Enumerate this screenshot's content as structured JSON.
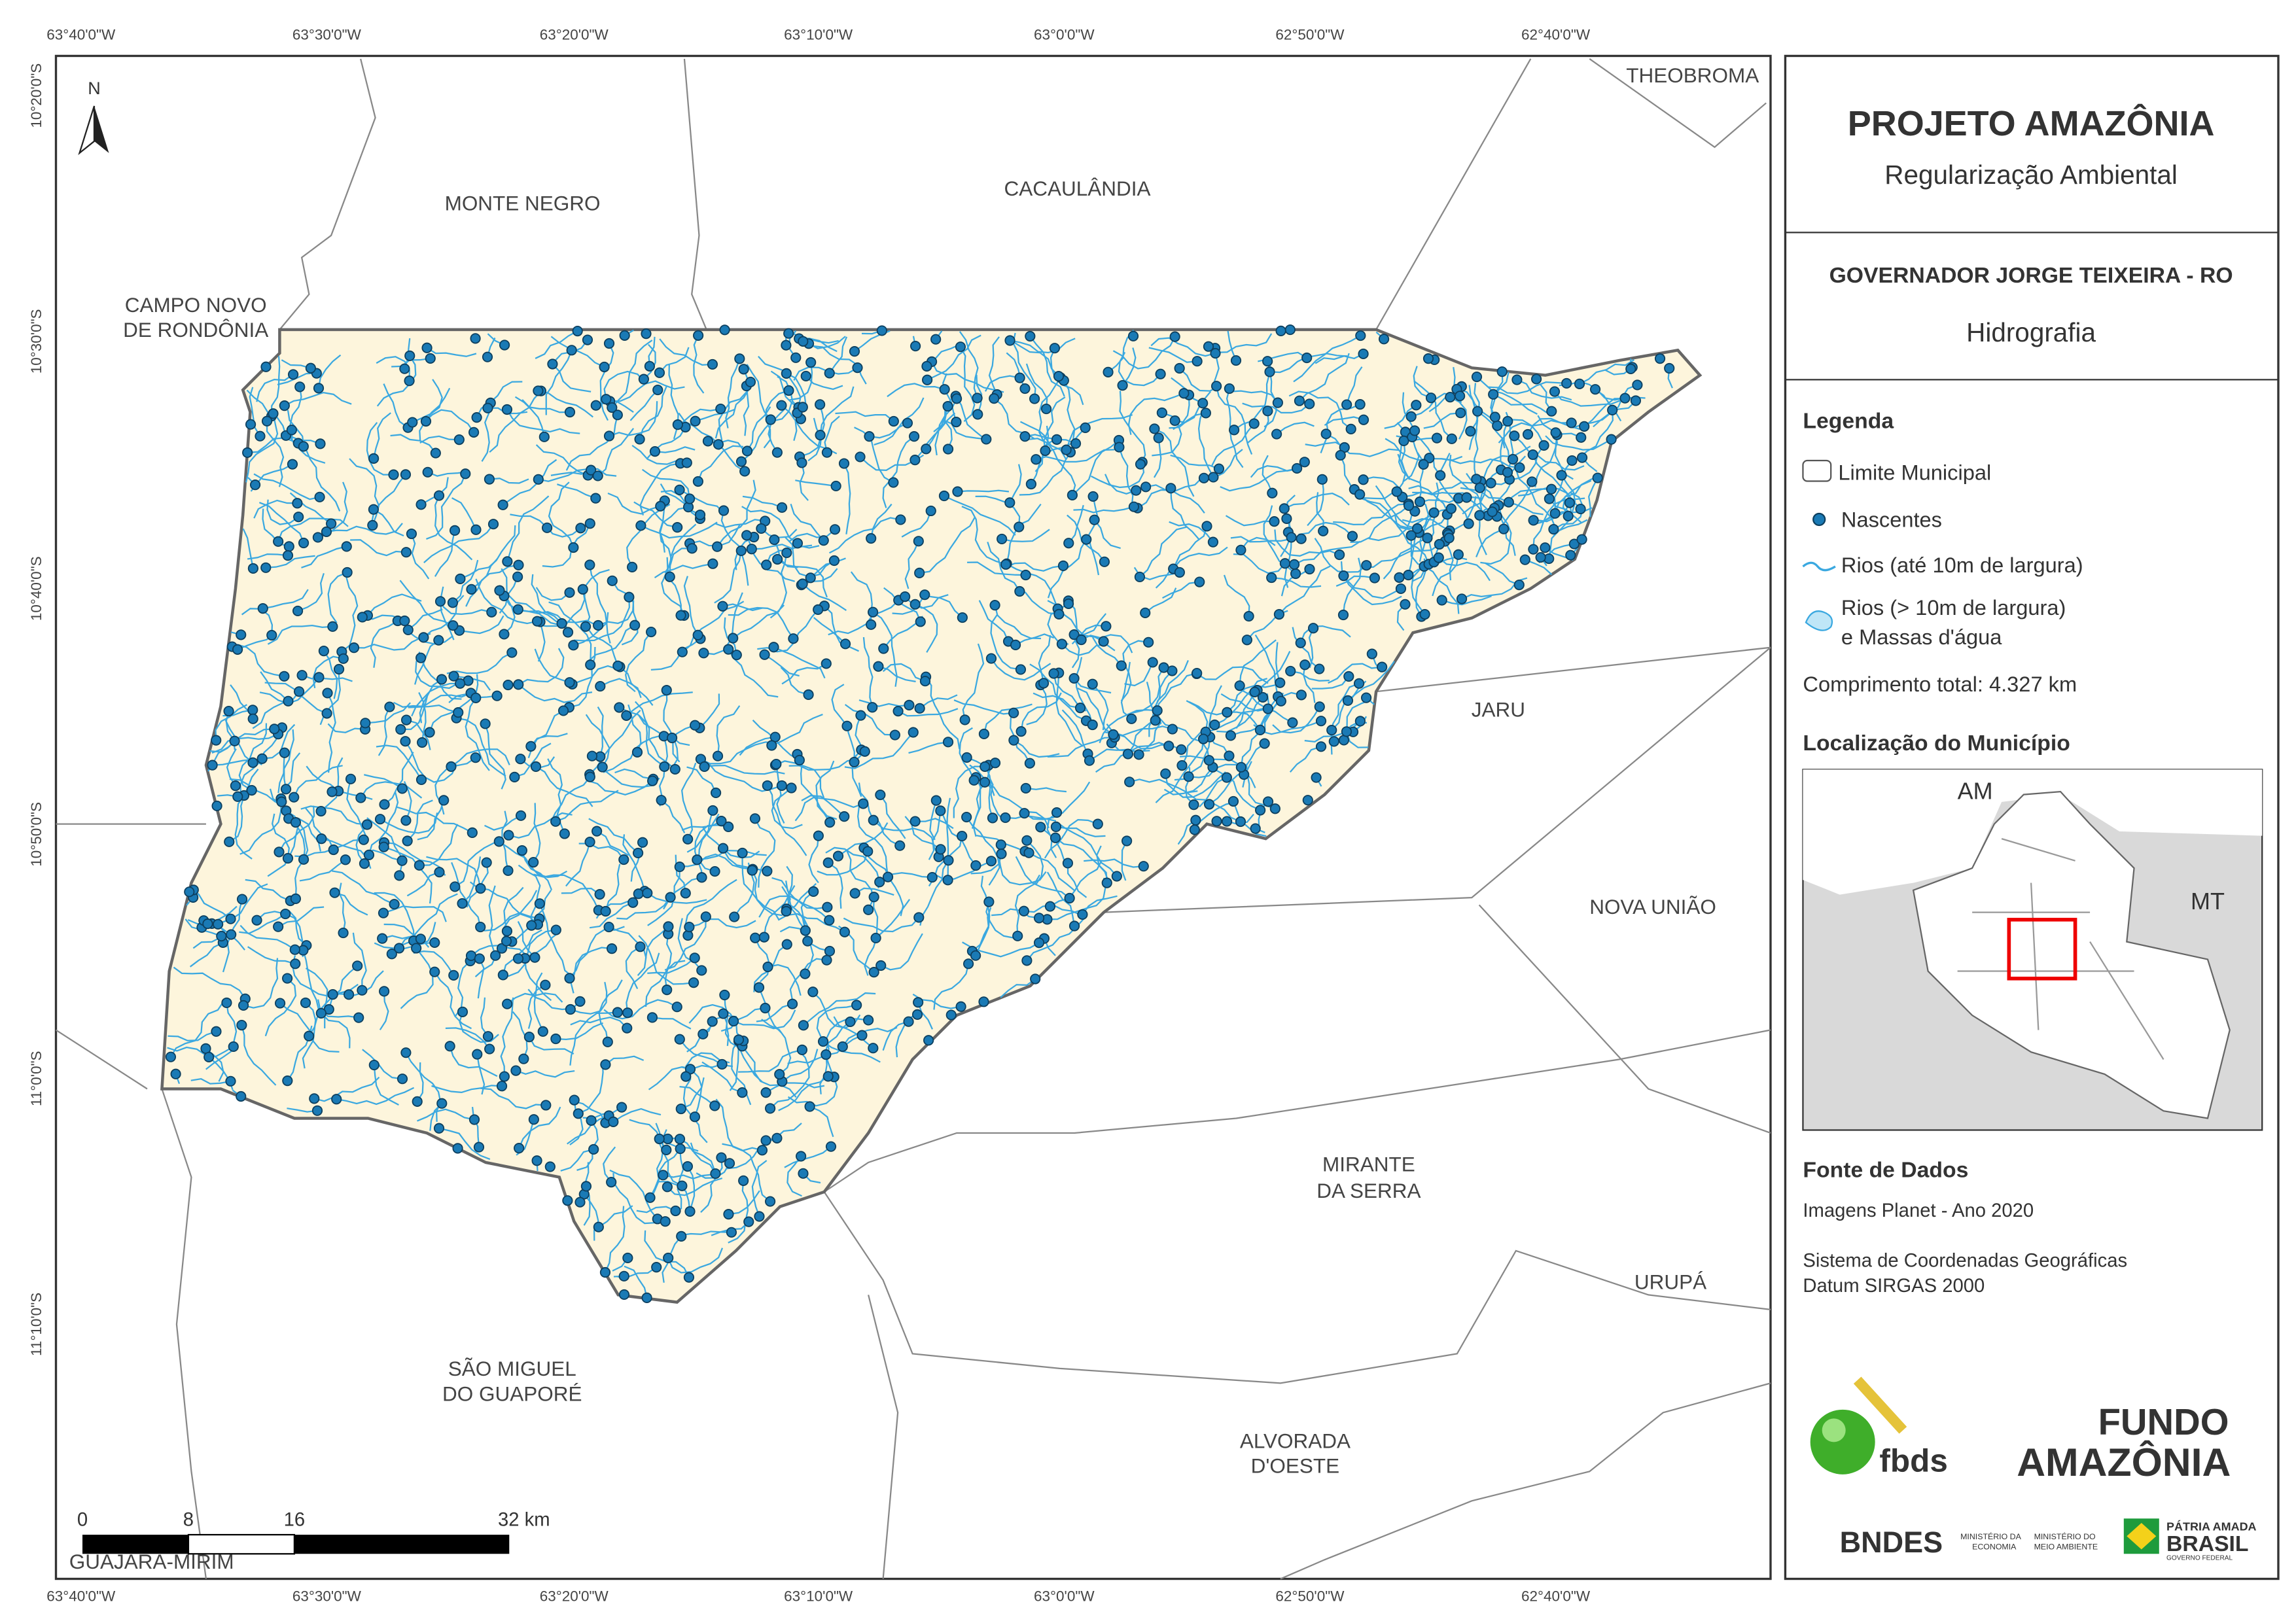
{
  "header": {
    "title": "PROJETO AMAZÔNIA",
    "subtitle": "Regularização Ambiental",
    "municipality": "GOVERNADOR JORGE TEIXEIRA - RO",
    "theme": "Hidrografia"
  },
  "legend": {
    "title": "Legenda",
    "items": [
      "Limite Municipal",
      "Nascentes",
      "Rios (até 10m de largura)",
      "Rios (> 10m de largura)",
      "e Massas d'água"
    ],
    "total": "Comprimento total:  4.327 km"
  },
  "location": {
    "title": "Localização do Município",
    "labels": [
      "AM",
      "MT"
    ]
  },
  "sources": {
    "title": "Fonte de Dados",
    "lines": [
      "Imagens Planet - Ano 2020",
      "Sistema de Coordenadas Geográficas",
      "Datum SIRGAS 2000"
    ]
  },
  "map": {
    "north": "N",
    "longitudes": [
      "63°40'0\"W",
      "63°30'0\"W",
      "63°20'0\"W",
      "63°10'0\"W",
      "63°0'0\"W",
      "62°50'0\"W",
      "62°40'0\"W"
    ],
    "latitudes": [
      "10°20'0\"S",
      "10°30'0\"S",
      "10°40'0\"S",
      "10°50'0\"S",
      "11°0'0\"S",
      "11°10'0\"S"
    ],
    "neighbors": [
      [
        "THEOBROMA"
      ],
      [
        "MONTE NEGRO"
      ],
      [
        "CACAULÂNDIA"
      ],
      [
        "CAMPO NOVO",
        "DE RONDÔNIA"
      ],
      [
        "JARU"
      ],
      [
        "NOVA UNIÃO"
      ],
      [
        "MIRANTE",
        "DA SERRA"
      ],
      [
        "URUPÁ"
      ],
      [
        "SÃO MIGUEL",
        "DO GUAPORÉ"
      ],
      [
        "ALVORADA",
        "D'OESTE"
      ],
      [
        "GUAJARÁ-MIRIM"
      ]
    ],
    "scale_labels": [
      "0",
      "8",
      "16",
      "32 km"
    ]
  },
  "logos": {
    "fbds": "fbds",
    "fundo": [
      "FUNDO",
      "AMAZÔNIA"
    ],
    "bndes": "BNDES",
    "ministries": [
      "MINISTÉRIO DA",
      "ECONOMIA",
      "MINISTÉRIO DO",
      "MEIO AMBIENTE"
    ],
    "brasil": [
      "PÁTRIA AMADA",
      "BRASIL",
      "GOVERNO FEDERAL"
    ]
  }
}
